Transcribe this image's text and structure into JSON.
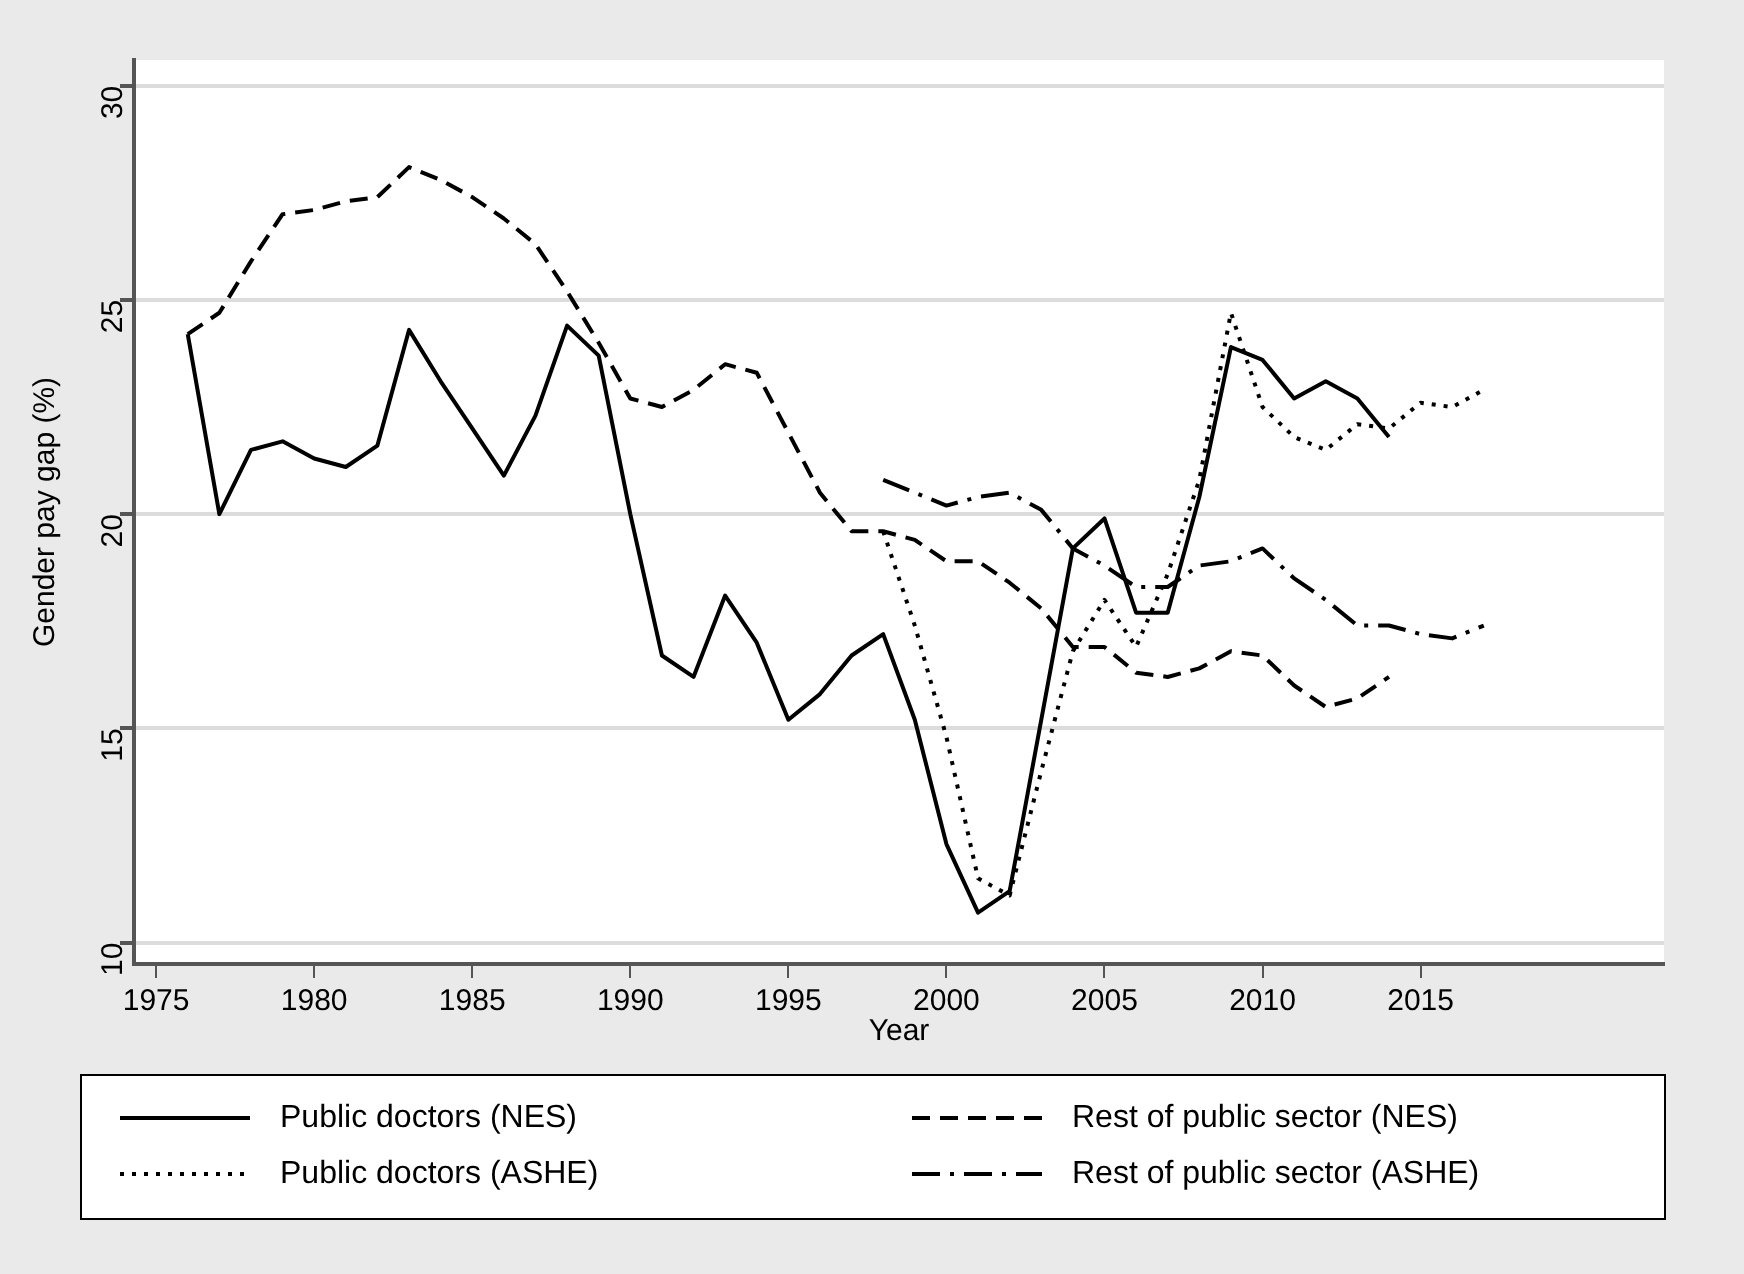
{
  "chart_data": {
    "type": "line",
    "xlabel": "Year",
    "ylabel": "Gender pay gap (%)",
    "xlim": [
      1974.3,
      2022.7
    ],
    "xticks": [
      1975,
      1980,
      1985,
      1990,
      1995,
      2000,
      2005,
      2010,
      2015
    ],
    "ylim": [
      9.5,
      30.6
    ],
    "yticks": [
      10,
      15,
      20,
      25,
      30
    ],
    "grid": "y",
    "legend": "bottom",
    "marker": "none",
    "series": [
      {
        "name": "Public doctors (NES)",
        "color": "#000000",
        "line_style": "solid",
        "x": [
          1976,
          1977,
          1978,
          1979,
          1980,
          1981,
          1982,
          1983,
          1984,
          1985,
          1986,
          1987,
          1988,
          1989,
          1990,
          1991,
          1992,
          1993,
          1994,
          1995,
          1996,
          1997,
          1998,
          1999,
          2000,
          2001,
          2002,
          2003,
          2004,
          2005,
          2006,
          2007,
          2008,
          2009,
          2010,
          2011,
          2012,
          2013,
          2014
        ],
        "values": [
          24.2,
          20.0,
          21.5,
          21.7,
          21.3,
          21.1,
          21.6,
          24.3,
          23.1,
          22.0,
          20.9,
          22.3,
          24.4,
          23.7,
          20.0,
          16.7,
          16.2,
          18.1,
          17.0,
          15.2,
          15.8,
          16.7,
          17.2,
          15.2,
          12.3,
          10.7,
          11.2,
          15.2,
          19.2,
          19.9,
          17.7,
          17.7,
          20.4,
          23.9,
          23.6,
          22.7,
          23.1,
          22.7,
          21.8
        ]
      },
      {
        "name": "Rest of public sector (NES)",
        "color": "#000000",
        "line_style": "dashed",
        "x": [
          1976,
          1977,
          1978,
          1979,
          1980,
          1981,
          1982,
          1983,
          1984,
          1985,
          1986,
          1987,
          1988,
          1989,
          1990,
          1991,
          1992,
          1993,
          1994,
          1995,
          1996,
          1997,
          1998,
          1999,
          2000,
          2001,
          2002,
          2003,
          2004,
          2005,
          2006,
          2007,
          2008,
          2009,
          2010,
          2011,
          2012,
          2013,
          2014
        ],
        "values": [
          24.2,
          24.7,
          25.9,
          27.0,
          27.1,
          27.3,
          27.4,
          28.1,
          27.8,
          27.4,
          26.9,
          26.3,
          25.2,
          24.0,
          22.7,
          22.5,
          22.9,
          23.5,
          23.3,
          21.9,
          20.5,
          19.6,
          19.6,
          19.4,
          18.9,
          18.9,
          18.4,
          17.8,
          16.9,
          16.9,
          16.3,
          16.2,
          16.4,
          16.8,
          16.7,
          16.0,
          15.5,
          15.7,
          16.2
        ]
      },
      {
        "name": "Public doctors (ASHE)",
        "color": "#000000",
        "line_style": "dotted",
        "x": [
          1998,
          1999,
          2000,
          2001,
          2002,
          2003,
          2004,
          2005,
          2006,
          2007,
          2008,
          2009,
          2010,
          2011,
          2012,
          2013,
          2014,
          2015,
          2016,
          2017
        ],
        "values": [
          19.6,
          17.4,
          14.8,
          11.5,
          11.1,
          14.0,
          16.8,
          18.0,
          16.9,
          18.6,
          20.8,
          24.7,
          22.5,
          21.8,
          21.5,
          22.1,
          22.0,
          22.6,
          22.5,
          22.9
        ]
      },
      {
        "name": "Rest of public sector (ASHE)",
        "color": "#000000",
        "line_style": "dashdot",
        "x": [
          1998,
          1999,
          2000,
          2001,
          2002,
          2003,
          2004,
          2005,
          2006,
          2007,
          2008,
          2009,
          2010,
          2011,
          2012,
          2013,
          2014,
          2015,
          2016,
          2017
        ],
        "values": [
          20.8,
          20.5,
          20.2,
          20.4,
          20.5,
          20.1,
          19.2,
          18.8,
          18.3,
          18.3,
          18.8,
          18.9,
          19.2,
          18.5,
          18.0,
          17.4,
          17.4,
          17.2,
          17.1,
          17.4
        ]
      }
    ]
  }
}
